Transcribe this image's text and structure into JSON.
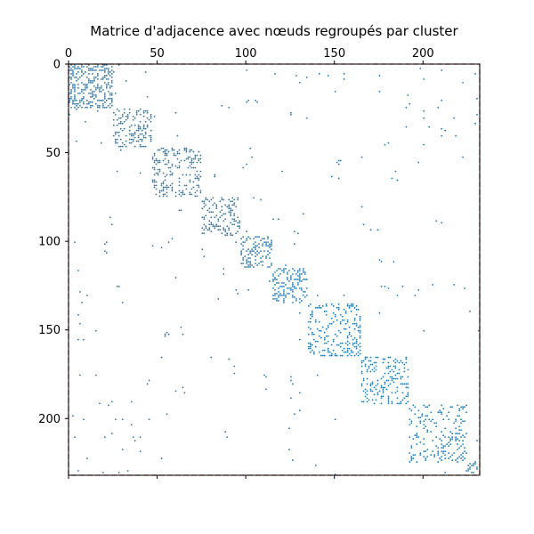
{
  "chart_data": {
    "type": "heatmap",
    "title": "Matrice d'adjacence avec nœuds regroupés par cluster",
    "xlabel": "",
    "ylabel": "",
    "n_nodes": 232,
    "xlim": [
      0,
      232
    ],
    "ylim": [
      0,
      232
    ],
    "x_axis_position": "top",
    "y_axis_inverted": true,
    "x_ticks": [
      0,
      50,
      100,
      150,
      200
    ],
    "y_ticks": [
      0,
      50,
      100,
      150,
      200
    ],
    "grid": false,
    "marker_color": "#1f77b4",
    "cluster_box_color": "#b22222",
    "cluster_box_style": "dashed",
    "cluster_boxes": [
      [
        0,
        232
      ]
    ],
    "clusters": [
      {
        "start": 0,
        "end": 25,
        "density": 0.35
      },
      {
        "start": 25,
        "end": 47,
        "density": 0.3
      },
      {
        "start": 47,
        "end": 75,
        "density": 0.28
      },
      {
        "start": 75,
        "end": 97,
        "density": 0.3
      },
      {
        "start": 97,
        "end": 115,
        "density": 0.3
      },
      {
        "start": 115,
        "end": 135,
        "density": 0.28
      },
      {
        "start": 135,
        "end": 165,
        "density": 0.22
      },
      {
        "start": 165,
        "end": 192,
        "density": 0.25
      },
      {
        "start": 192,
        "end": 225,
        "density": 0.18
      },
      {
        "start": 225,
        "end": 232,
        "density": 0.5
      }
    ],
    "off_cluster_edges": [
      [
        5,
        116
      ],
      [
        5,
        229
      ],
      [
        20,
        3
      ],
      [
        20,
        10
      ],
      [
        24,
        90
      ],
      [
        25,
        4
      ],
      [
        28,
        0
      ],
      [
        14,
        1
      ],
      [
        26,
        16
      ],
      [
        33,
        29
      ],
      [
        44,
        18
      ],
      [
        27,
        125
      ],
      [
        28,
        125
      ],
      [
        30,
        134
      ],
      [
        40,
        61
      ],
      [
        24,
        190
      ],
      [
        19,
        7
      ],
      [
        20,
        105
      ],
      [
        21,
        106
      ],
      [
        62,
        82
      ],
      [
        63,
        82
      ],
      [
        22,
        192
      ],
      [
        23,
        86
      ],
      [
        26,
        200
      ],
      [
        35,
        203
      ],
      [
        36,
        210
      ],
      [
        37,
        212
      ],
      [
        33,
        229
      ],
      [
        6,
        175
      ],
      [
        8,
        200
      ],
      [
        10,
        130
      ],
      [
        24,
        208
      ],
      [
        6,
        128
      ],
      [
        5,
        155
      ],
      [
        6,
        146
      ],
      [
        12,
        10
      ],
      [
        15,
        150
      ],
      [
        20,
        101
      ],
      [
        21,
        100
      ],
      [
        19,
        230
      ],
      [
        5,
        141
      ],
      [
        15,
        175
      ],
      [
        17,
        191
      ],
      [
        56,
        100
      ],
      [
        58,
        98
      ],
      [
        64,
        182
      ],
      [
        65,
        185
      ],
      [
        44,
        180
      ],
      [
        45,
        178
      ],
      [
        54,
        152
      ],
      [
        55,
        151
      ],
      [
        60,
        184
      ],
      [
        55,
        197
      ],
      [
        87,
        115
      ],
      [
        87,
        118
      ],
      [
        94,
        127
      ],
      [
        95,
        129
      ],
      [
        88,
        207
      ],
      [
        89,
        210
      ],
      [
        75,
        104
      ],
      [
        76,
        108
      ],
      [
        63,
        148
      ],
      [
        64,
        152
      ],
      [
        87,
        93
      ],
      [
        102,
        47
      ],
      [
        103,
        52
      ],
      [
        90,
        166
      ],
      [
        93,
        170
      ],
      [
        93,
        174
      ],
      [
        100,
        94
      ],
      [
        105,
        100
      ],
      [
        125,
        127
      ],
      [
        126,
        130
      ],
      [
        113,
        122
      ],
      [
        132,
        84
      ],
      [
        155,
        8
      ],
      [
        165,
        52
      ],
      [
        175,
        140
      ],
      [
        178,
        125
      ],
      [
        180,
        126
      ],
      [
        185,
        130
      ],
      [
        195,
        130
      ],
      [
        197,
        127
      ],
      [
        2,
        198
      ],
      [
        110,
        175
      ],
      [
        111,
        176
      ],
      [
        111,
        183
      ],
      [
        200,
        45
      ],
      [
        210,
        3
      ],
      [
        222,
        52
      ],
      [
        210,
        40
      ],
      [
        218,
        40
      ],
      [
        190,
        35
      ],
      [
        222,
        10
      ],
      [
        217,
        30
      ],
      [
        210,
        20
      ],
      [
        120,
        60
      ],
      [
        140,
        130
      ],
      [
        152,
        150
      ],
      [
        155,
        130
      ],
      [
        127,
        101
      ],
      [
        54,
        153
      ],
      [
        56,
        152
      ],
      [
        150,
        200
      ],
      [
        125,
        176
      ],
      [
        125,
        188
      ],
      [
        124,
        205
      ],
      [
        124,
        217
      ],
      [
        126,
        223
      ],
      [
        3,
        100
      ],
      [
        4,
        43
      ],
      [
        165,
        80
      ],
      [
        200,
        30
      ],
      [
        230,
        28
      ],
      [
        231,
        150
      ],
      [
        230,
        212
      ],
      [
        226,
        139
      ],
      [
        229,
        224
      ],
      [
        25,
        40
      ],
      [
        26,
        28
      ],
      [
        27,
        60
      ],
      [
        7,
        134
      ],
      [
        29,
        48
      ],
      [
        32,
        9
      ]
    ]
  }
}
